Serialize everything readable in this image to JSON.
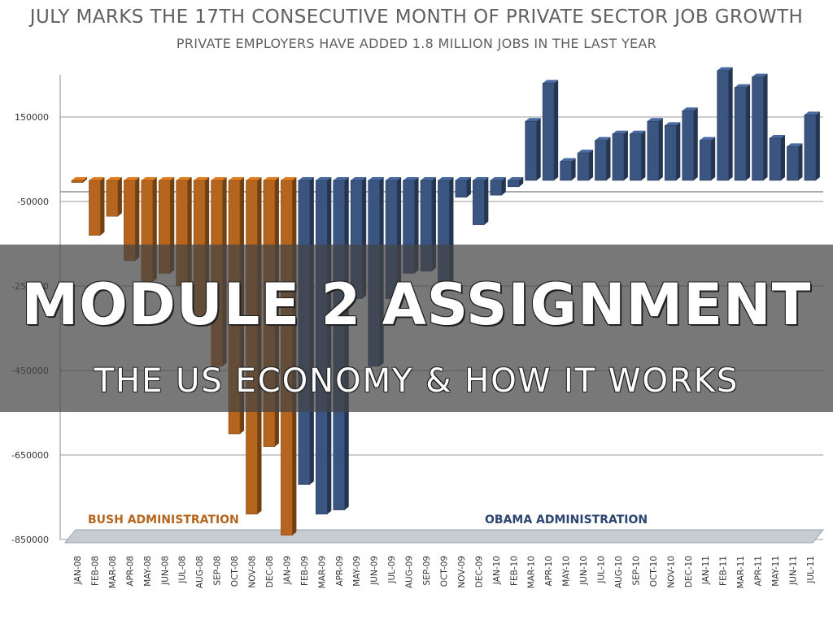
{
  "slide": {
    "title": "MODULE 2 ASSIGNMENT",
    "subtitle": "THE US ECONOMY & HOW IT WORKS"
  },
  "chart_data": {
    "type": "bar",
    "title": "JULY MARKS THE 17TH CONSECUTIVE MONTH OF PRIVATE SECTOR JOB GROWTH",
    "subtitle": "PRIVATE EMPLOYERS HAVE ADDED 1.8 MILLION JOBS IN THE LAST YEAR",
    "xlabel": "",
    "ylabel": "",
    "ylim": [
      -850000,
      250000
    ],
    "yticks": [
      150000,
      -50000,
      -250000,
      -450000,
      -650000,
      -850000
    ],
    "grid": true,
    "categories": [
      "JAN-08",
      "FEB-08",
      "MAR-08",
      "APR-08",
      "MAY-08",
      "JUN-08",
      "JUL-08",
      "AUG-08",
      "SEP-08",
      "OCT-08",
      "NOV-08",
      "DEC-08",
      "JAN-09",
      "FEB-09",
      "MAR-09",
      "APR-09",
      "MAY-09",
      "JUN-09",
      "JUL-09",
      "AUG-09",
      "SEP-09",
      "OCT-09",
      "NOV-09",
      "DEC-09",
      "JAN-10",
      "FEB-10",
      "MAR-10",
      "APR-10",
      "MAY-10",
      "JUN-10",
      "JUL-10",
      "AUG-10",
      "SEP-10",
      "OCT-10",
      "NOV-10",
      "DEC-10",
      "JAN-11",
      "FEB-11",
      "MAR-11",
      "APR-11",
      "MAY-11",
      "JUN-11",
      "JUL-11"
    ],
    "values": [
      -5000,
      -130000,
      -85000,
      -190000,
      -240000,
      -220000,
      -250000,
      -320000,
      -440000,
      -600000,
      -790000,
      -630000,
      -840000,
      -720000,
      -790000,
      -780000,
      -280000,
      -440000,
      -280000,
      -220000,
      -215000,
      -245000,
      -40000,
      -105000,
      -35000,
      -15000,
      140000,
      230000,
      45000,
      65000,
      95000,
      110000,
      110000,
      140000,
      130000,
      165000,
      95000,
      260000,
      220000,
      245000,
      100000,
      80000,
      155000
    ],
    "administrations": [
      {
        "name": "BUSH ADMINISTRATION",
        "first_index": 0,
        "last_index": 12,
        "color": "#B5651D"
      },
      {
        "name": "OBAMA ADMINISTRATION",
        "first_index": 13,
        "last_index": 42,
        "color": "#3A5580"
      }
    ],
    "gridline_color": "#9a9a9a"
  }
}
